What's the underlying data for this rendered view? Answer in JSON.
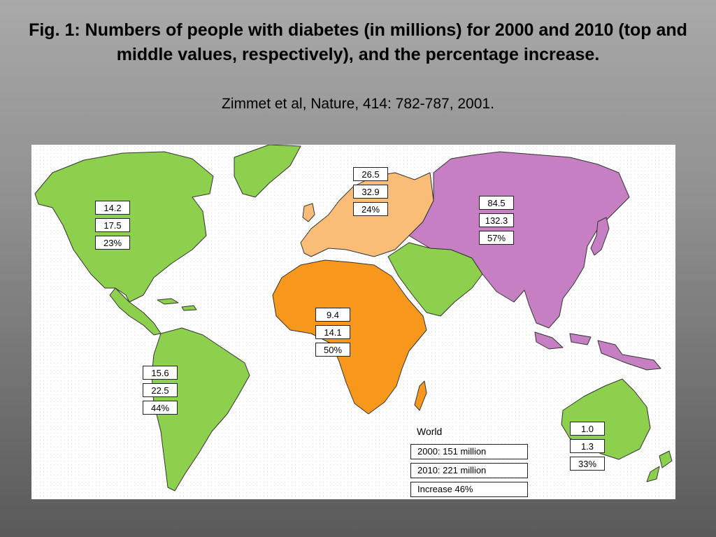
{
  "slide": {
    "title": "Fig. 1: Numbers of people with diabetes (in millions) for 2000 and 2010 (top and middle values, respectively), and the percentage increase.",
    "citation": "Zimmet et al, Nature, 414: 782-787, 2001."
  },
  "colors": {
    "americas_oceania_middle_east": "#8dd04d",
    "europe": "#f9bd78",
    "africa": "#f7981c",
    "asia": "#c77fc4"
  },
  "regions": {
    "north_america": {
      "y2000": "14.2",
      "y2010": "17.5",
      "increase": "23%"
    },
    "europe": {
      "y2000": "26.5",
      "y2010": "32.9",
      "increase": "24%"
    },
    "asia": {
      "y2000": "84.5",
      "y2010": "132.3",
      "increase": "57%"
    },
    "africa": {
      "y2000": "9.4",
      "y2010": "14.1",
      "increase": "50%"
    },
    "south_america": {
      "y2000": "15.6",
      "y2010": "22.5",
      "increase": "44%"
    },
    "australia": {
      "y2000": "1.0",
      "y2010": "1.3",
      "increase": "33%"
    }
  },
  "world": {
    "label": "World",
    "y2000": "2000: 151 million",
    "y2010": "2010: 221 million",
    "increase": "Increase 46%"
  }
}
